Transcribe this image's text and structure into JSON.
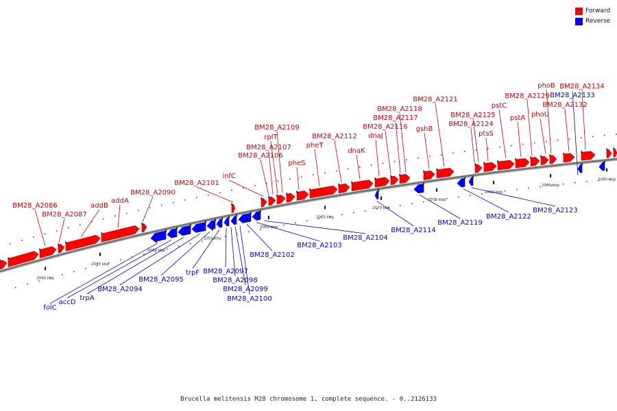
{
  "caption": "Brucella melitensis M28 chromosome 1, complete sequence. - 0..2126133",
  "legend": [
    {
      "label": "Forward",
      "color": "#ff0000"
    },
    {
      "label": "Reverse",
      "color": "#0000ff"
    }
  ],
  "colors": {
    "forward": "#ff0000",
    "reverse": "#0000ff",
    "backbone": "#888888",
    "label_forward": "#cc0000",
    "label_reverse": "#0000cc"
  },
  "scale_labels": [
    "2040 kbp",
    "2045 kbp",
    "2050 kbp",
    "2055 kbp",
    "2060 kbp",
    "2065 kbp",
    "2070 kbp",
    "2075 kbp",
    "2080 kbp",
    "2085 kbp",
    "2090 kbp"
  ],
  "forward_genes": [
    "BM28_A2086",
    "BM28_A2087",
    "addB",
    "addA",
    "BM28_A2090",
    "BM28_A2101",
    "infC",
    "BM28_A2106",
    "BM28_A2107",
    "rplT",
    "BM28_A2109",
    "pheS",
    "pheT",
    "BM28_A2112",
    "dnaK",
    "dnaJ",
    "BM28_A2116",
    "BM28_A2117",
    "BM28_A2118",
    "gshB",
    "BM28_A2121",
    "BM28_A2124",
    "BM28_A2125",
    "ptsS",
    "pstC",
    "pstA",
    "BM28_A2129",
    "phoU",
    "phoB",
    "BM28_A2132",
    "BM28_A2134"
  ],
  "reverse_genes": [
    "folC",
    "accD",
    "trpA",
    "BM28_A2094",
    "BM28_A2095",
    "trpF",
    "BM28_A2097",
    "BM28_A2098",
    "BM28_A2099",
    "BM28_A2100",
    "BM28_A2102",
    "BM28_A2103",
    "BM28_A2104",
    "BM28_A2114",
    "BM28_A2119",
    "BM28_A2122",
    "BM28_A2123",
    "BM28_A2133"
  ]
}
